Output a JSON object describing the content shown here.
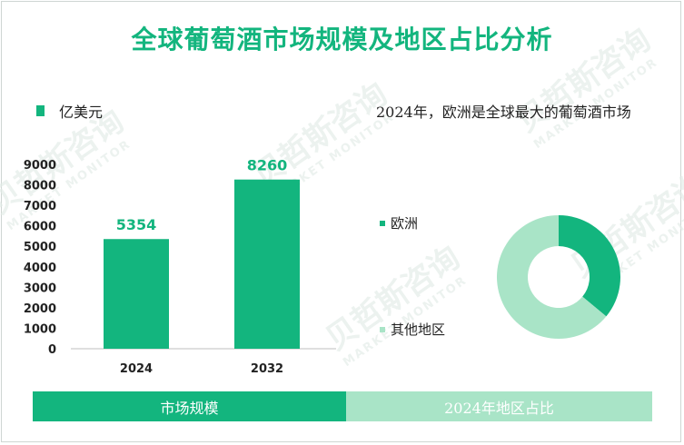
{
  "title": "全球葡萄酒市场规模及地区占比分析",
  "colors": {
    "primary": "#13b57e",
    "light": "#a9e4c7"
  },
  "bar_chart": {
    "unit_label": "亿美元"
  },
  "pie_chart": {
    "title": "2024年，欧洲是全球最大的葡萄酒市场"
  },
  "footer": {
    "left": "市场规模",
    "right": "2024年地区占比"
  },
  "chart_data": [
    {
      "type": "bar",
      "title": "",
      "categories": [
        "2024",
        "2032"
      ],
      "values": [
        5354,
        8260
      ],
      "series": [
        {
          "name": "亿美元",
          "values": [
            5354,
            8260
          ]
        }
      ],
      "ylim": [
        0,
        9000
      ],
      "yticks": [
        0,
        1000,
        2000,
        3000,
        4000,
        5000,
        6000,
        7000,
        8000,
        9000
      ],
      "xlabel": "",
      "ylabel": "",
      "grid": false,
      "legend": "top-left"
    },
    {
      "type": "pie",
      "title": "2024年，欧洲是全球最大的葡萄酒市场",
      "labels": [
        "欧洲",
        "其他地区"
      ],
      "values": [
        36,
        64
      ],
      "colors": [
        "#13b57e",
        "#a9e4c7"
      ],
      "donut": true,
      "legend": "left"
    }
  ]
}
